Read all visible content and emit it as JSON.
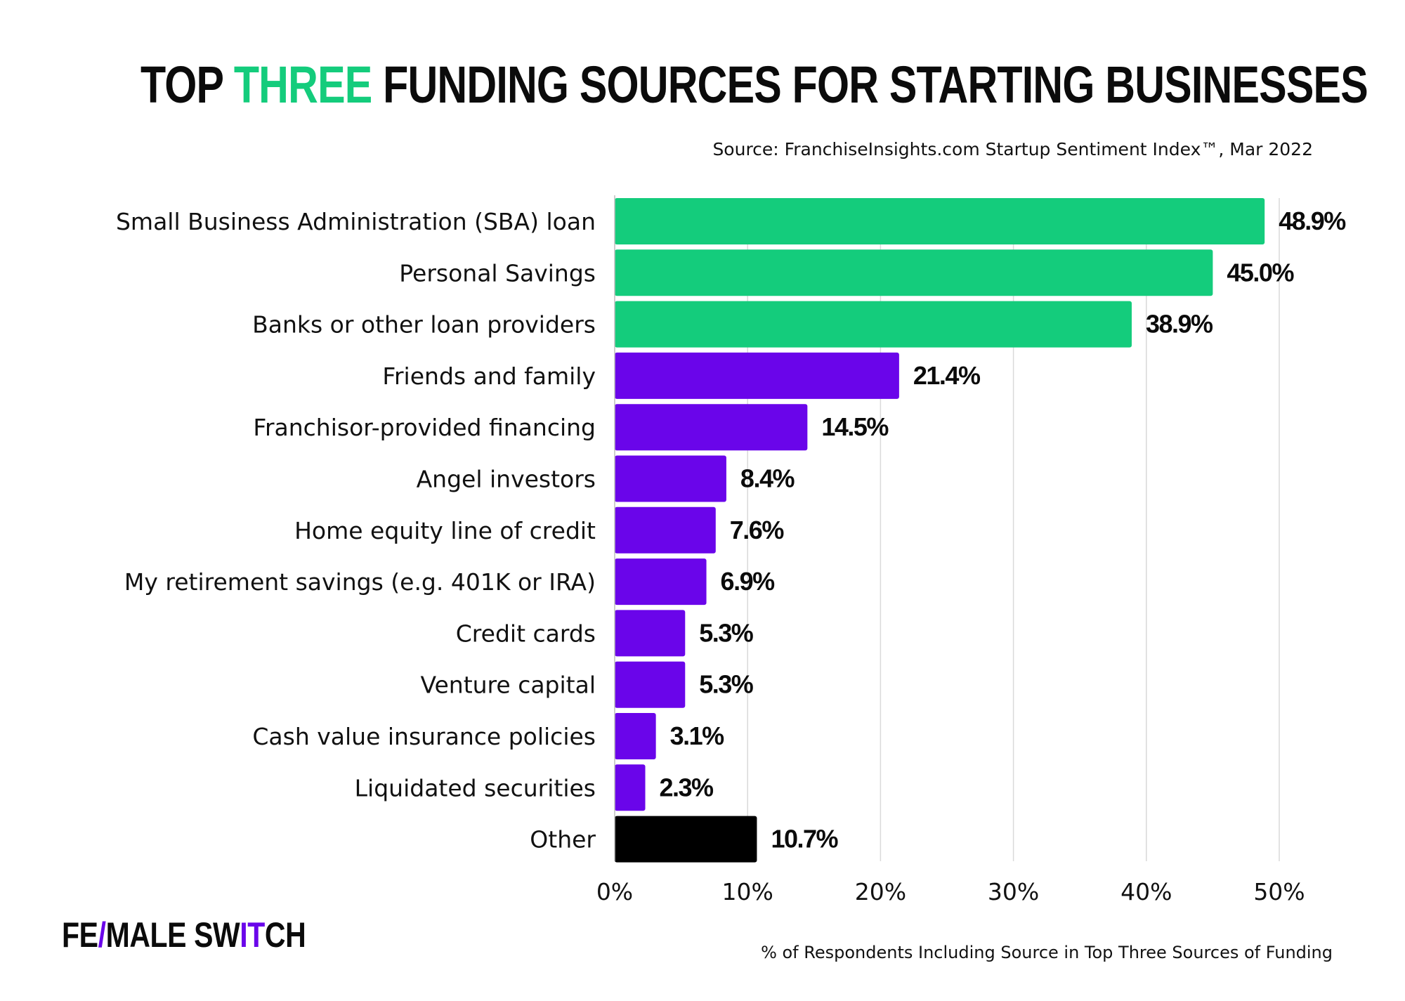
{
  "title": {
    "before": "TOP ",
    "accent": "THREE",
    "after": " FUNDING SOURCES FOR STARTING BUSINESSES"
  },
  "source": "Source: FranchiseInsights.com Startup Sentiment Index™, Mar 2022",
  "logo": {
    "part1": "FE",
    "slash": "/",
    "part2": "MALE SW",
    "highlight": "IT",
    "part3": "CH"
  },
  "colors": {
    "green": "#14cc7c",
    "purple": "#6a05ea",
    "black": "#000000",
    "grid": "#d9d9d9"
  },
  "chart_data": {
    "type": "bar",
    "orientation": "horizontal",
    "title": "TOP THREE FUNDING SOURCES FOR STARTING BUSINESSES",
    "xlabel": "% of Respondents Including Source in Top Three Sources of Funding",
    "ylabel": "",
    "xlim": [
      0,
      50
    ],
    "grid": true,
    "ticks": [
      "0%",
      "10%",
      "20%",
      "30%",
      "40%",
      "50%"
    ],
    "tick_values": [
      0,
      10,
      20,
      30,
      40,
      50
    ],
    "categories": [
      "Small Business Administration (SBA) loan",
      "Personal Savings",
      "Banks or other loan providers",
      "Friends and family",
      "Franchisor-provided financing",
      "Angel investors",
      "Home equity line of credit",
      "My retirement savings (e.g. 401K or IRA)",
      "Credit cards",
      "Venture capital",
      "Cash value insurance policies",
      "Liquidated securities",
      "Other"
    ],
    "values": [
      48.9,
      45.0,
      38.9,
      21.4,
      14.5,
      8.4,
      7.6,
      6.9,
      5.3,
      5.3,
      3.1,
      2.3,
      10.7
    ],
    "labels": [
      "48.9%",
      "45.0%",
      "38.9%",
      "21.4%",
      "14.5%",
      "8.4%",
      "7.6%",
      "6.9%",
      "5.3%",
      "5.3%",
      "3.1%",
      "2.3%",
      "10.7%"
    ],
    "bar_colors": [
      "green",
      "green",
      "green",
      "purple",
      "purple",
      "purple",
      "purple",
      "purple",
      "purple",
      "purple",
      "purple",
      "purple",
      "black"
    ]
  }
}
